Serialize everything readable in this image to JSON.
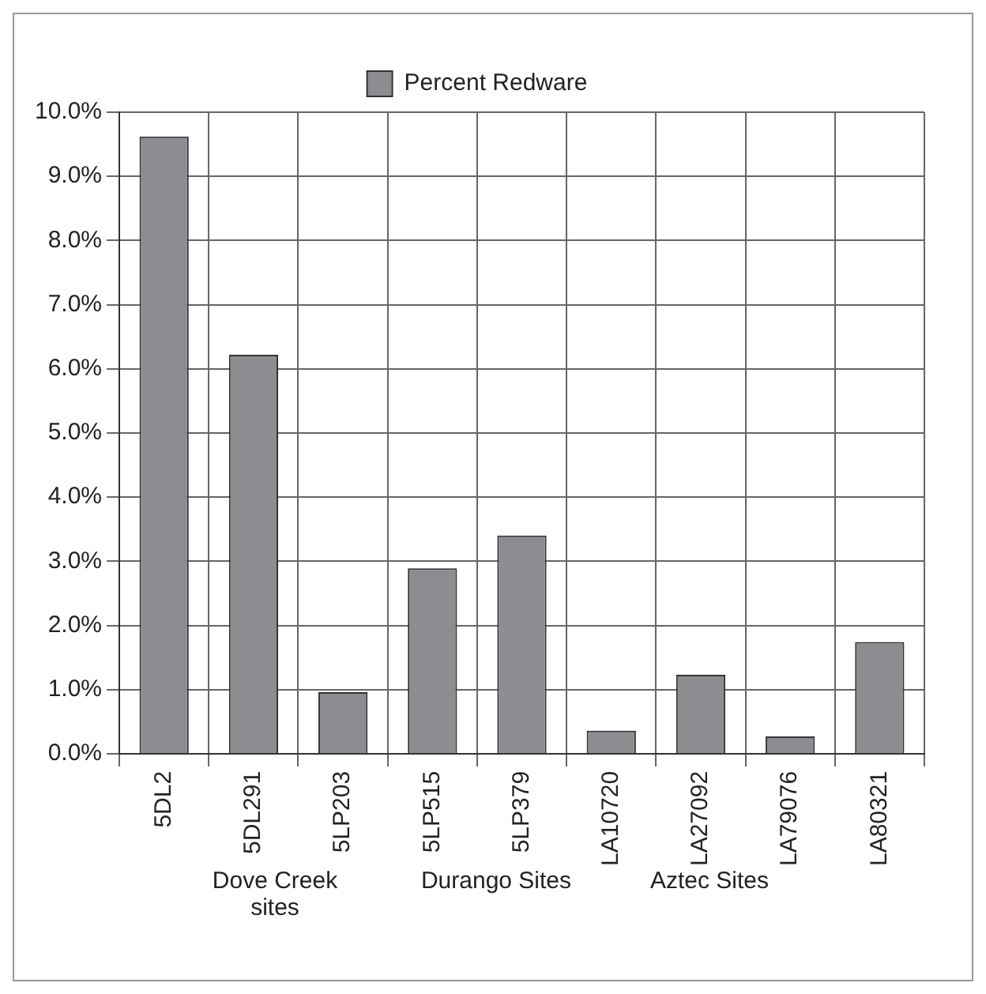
{
  "chart_data": {
    "type": "bar",
    "categories": [
      "5DL2",
      "5DL291",
      "5LP203",
      "5LP515",
      "5LP379",
      "LA10720",
      "LA27092",
      "LA79076",
      "LA80321"
    ],
    "series": [
      {
        "name": "Percent Redware",
        "color": "#8c8d91",
        "values": [
          9.62,
          6.22,
          0.96,
          2.89,
          3.4,
          0.36,
          1.23,
          0.27,
          1.74
        ]
      }
    ],
    "ylim": [
      0,
      10
    ],
    "yticks": [
      {
        "value": 0,
        "label": "0.0%"
      },
      {
        "value": 1,
        "label": "1.0%"
      },
      {
        "value": 2,
        "label": "2.0%"
      },
      {
        "value": 3,
        "label": "3.0%"
      },
      {
        "value": 4,
        "label": "4.0%"
      },
      {
        "value": 5,
        "label": "5.0%"
      },
      {
        "value": 6,
        "label": "6.0%"
      },
      {
        "value": 7,
        "label": "7.0%"
      },
      {
        "value": 8,
        "label": "8.0%"
      },
      {
        "value": 9,
        "label": "9.0%"
      },
      {
        "value": 10,
        "label": "10.0%"
      }
    ],
    "grid": true,
    "legend": "top",
    "annotations": [
      "Dove Creek sites",
      "Durango Sites",
      "Aztec Sites"
    ]
  }
}
